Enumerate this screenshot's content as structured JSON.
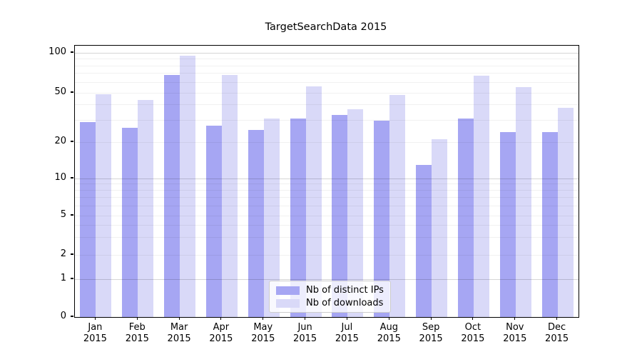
{
  "title": "TargetSearchData 2015",
  "colors": {
    "ips": "#a6a6f3",
    "downloads": "#d9d9f8",
    "grid_minor": "rgba(0,0,0,0.055)",
    "grid_major": "rgba(0,0,0,0.16)",
    "frame": "#000000",
    "background": "#ffffff"
  },
  "legend": {
    "items": [
      {
        "label": "Nb of distinct IPs",
        "color_key": "ips"
      },
      {
        "label": "Nb of downloads",
        "color_key": "downloads"
      }
    ]
  },
  "chart_data": {
    "type": "bar",
    "title": "TargetSearchData 2015",
    "categories": [
      "Jan",
      "Feb",
      "Mar",
      "Apr",
      "May",
      "Jun",
      "Jul",
      "Aug",
      "Sep",
      "Oct",
      "Nov",
      "Dec"
    ],
    "category_year": "2015",
    "series": [
      {
        "name": "Nb of distinct IPs",
        "color_key": "ips",
        "values": [
          29,
          26,
          68,
          27,
          25,
          31,
          33,
          30,
          13,
          31,
          24,
          24
        ]
      },
      {
        "name": "Nb of downloads",
        "color_key": "downloads",
        "values": [
          49,
          44,
          95,
          68,
          31,
          56,
          37,
          48,
          21,
          67,
          55,
          38
        ]
      }
    ],
    "yscale": "symlog",
    "ylim": [
      0,
      115
    ],
    "yticks": [
      100,
      50,
      20,
      10,
      5,
      2,
      1,
      0
    ],
    "ygrid_major": [
      100,
      10,
      1
    ],
    "ygrid_minor": [
      90,
      80,
      70,
      60,
      50,
      40,
      30,
      20,
      9,
      8,
      7,
      6,
      5,
      4,
      3,
      2
    ],
    "grid": true,
    "legend_position": "lower center",
    "xlabel": "",
    "ylabel": ""
  }
}
